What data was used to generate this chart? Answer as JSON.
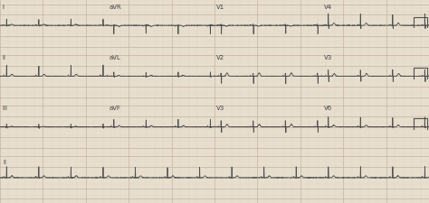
{
  "background_color": "#e8e0d0",
  "grid_major_color": "#c8b4a0",
  "grid_minor_color": "#ddd4c4",
  "line_color": "#505050",
  "line_width": 0.6,
  "fig_width": 4.74,
  "fig_height": 2.25,
  "dpi": 100,
  "n_rows": 4,
  "lead_labels_row0": [
    "I",
    "aVR",
    "V1",
    "V4"
  ],
  "lead_labels_row1": [
    "II",
    "aVL",
    "V2",
    "V3"
  ],
  "lead_labels_row2": [
    "III",
    "aVF",
    "V3",
    "V6"
  ],
  "lead_labels_row3": [
    "II",
    "",
    "",
    ""
  ],
  "label_color": "#404040",
  "label_fontsize": 5.0,
  "hr": 80
}
